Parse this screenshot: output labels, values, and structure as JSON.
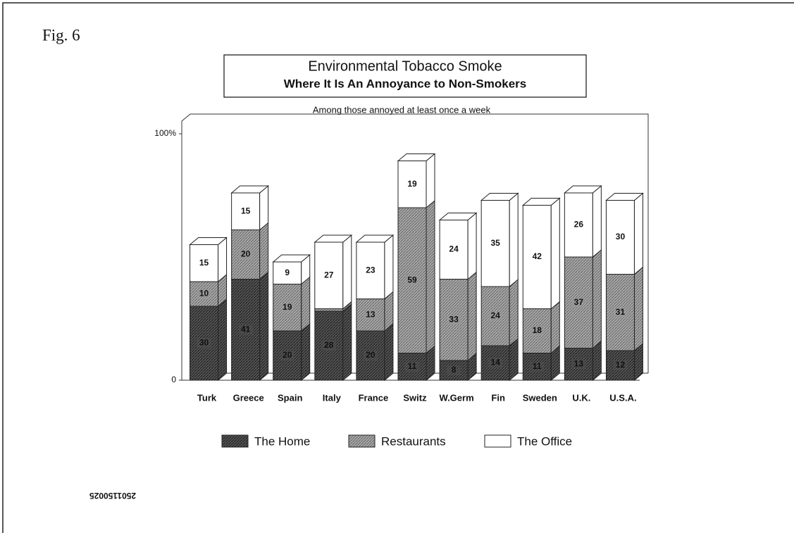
{
  "chart_data": {
    "type": "stacked_bar_3d",
    "figure_label": "Fig. 6",
    "title": "Environmental Tobacco Smoke",
    "title_line2": "Where It Is An Annoyance to Non-Smokers",
    "subtitle": "Among those annoyed at least once a week",
    "footer": "2501150025",
    "categories": [
      "Turk",
      "Greece",
      "Spain",
      "Italy",
      "France",
      "Switz",
      "W.Germ",
      "Fin",
      "Sweden",
      "U.K.",
      "U.S.A."
    ],
    "series": [
      {
        "name": "The Home",
        "color": "#555555",
        "values": [
          30,
          41,
          20,
          28,
          20,
          11,
          8,
          14,
          11,
          13,
          12
        ]
      },
      {
        "name": "Restaurants",
        "color": "#9a9a9a",
        "values": [
          10,
          20,
          19,
          1,
          13,
          59,
          33,
          24,
          18,
          37,
          31
        ]
      },
      {
        "name": "The Office",
        "color": "#ffffff",
        "values": [
          15,
          15,
          9,
          27,
          23,
          19,
          24,
          35,
          42,
          26,
          30
        ]
      }
    ],
    "ylim": [
      0,
      100
    ],
    "yticks": [
      0,
      {
        "value": 100,
        "label": "100%"
      }
    ]
  }
}
